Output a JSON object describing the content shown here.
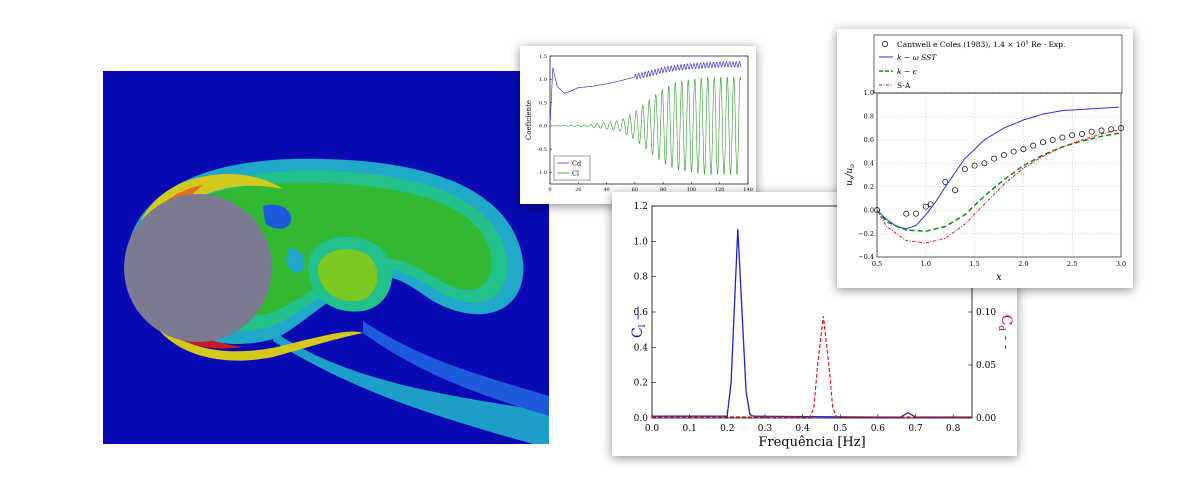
{
  "chart_data": [
    {
      "type": "line",
      "ylabel": "Coeficiente",
      "xlim": [
        0,
        140
      ],
      "ylim": [
        -1.25,
        1.5
      ],
      "xticks": [
        0,
        20,
        40,
        60,
        80,
        100,
        120,
        140
      ],
      "yticks": [
        -1.0,
        -0.5,
        0.0,
        0.5,
        1.0,
        1.5
      ],
      "legend_position": "lower-left",
      "series": [
        {
          "name": "Cd",
          "color": "#3a3ad6",
          "x": [
            0,
            2,
            5,
            10,
            15,
            20,
            30,
            40,
            50,
            60,
            70,
            80,
            90,
            100,
            110,
            120,
            135
          ],
          "values": [
            0.0,
            1.25,
            0.85,
            0.7,
            0.75,
            0.82,
            0.85,
            0.9,
            0.97,
            1.05,
            1.12,
            1.2,
            1.25,
            1.28,
            1.3,
            1.32,
            1.32
          ],
          "oscillation_amplitude": 0.06
        },
        {
          "name": "Cl",
          "color": "#2e9a2e",
          "x": [
            0,
            20,
            40,
            60,
            70,
            80,
            90,
            100,
            110,
            120,
            135
          ],
          "values": [
            0,
            0,
            0,
            0,
            0,
            0,
            0,
            0,
            0,
            0,
            0
          ],
          "envelope_x": [
            0,
            25,
            35,
            50,
            60,
            70,
            80,
            90,
            100,
            110,
            135
          ],
          "envelope": [
            0,
            0.02,
            0.05,
            0.12,
            0.3,
            0.55,
            0.8,
            0.95,
            1.0,
            1.05,
            1.05
          ]
        }
      ]
    },
    {
      "type": "line",
      "xlabel": "Frequência [Hz]",
      "ylabel_left": "C",
      "ylabel_left_sub": "l",
      "ylabel_right": "C",
      "ylabel_right_sub": "d",
      "xlim": [
        0,
        0.85
      ],
      "ylim_left": [
        0,
        1.2
      ],
      "ylim_right": [
        0,
        0.2
      ],
      "xticks": [
        "0.0",
        "0.1",
        "0.2",
        "0.3",
        "0.4",
        "0.5",
        "0.6",
        "0.7",
        "0.8"
      ],
      "yticks_left": [
        "0.0",
        "0.2",
        "0.4",
        "0.6",
        "0.8",
        "1.0",
        "1.2"
      ],
      "yticks_right": [
        "0.00",
        "0.05",
        "0.10"
      ],
      "series": [
        {
          "name": "Cl",
          "color": "#2222cc",
          "x": [
            0,
            0.2,
            0.2,
            0.21,
            0.228,
            0.25,
            0.26,
            0.27,
            0.6,
            0.66,
            0.68,
            0.7,
            0.85
          ],
          "values": [
            0.01,
            0.01,
            0.02,
            0.2,
            1.07,
            0.15,
            0.02,
            0.01,
            0.005,
            0.005,
            0.03,
            0.005,
            0.005
          ]
        },
        {
          "name": "Cd",
          "color": "#dd1111",
          "x": [
            0,
            0.42,
            0.43,
            0.44,
            0.455,
            0.47,
            0.48,
            0.49,
            0.85
          ],
          "values": [
            0.001,
            0.001,
            0.01,
            0.05,
            0.096,
            0.05,
            0.01,
            0.001,
            0.001
          ]
        }
      ]
    },
    {
      "type": "line",
      "xlabel": "x",
      "ylabel": "u",
      "ylabel_sub": "x",
      "ylabel_den": "u",
      "ylabel_den_sub": "o",
      "xlim": [
        0.5,
        3.0
      ],
      "ylim": [
        -0.4,
        1.0
      ],
      "xticks": [
        "0.5",
        "1.0",
        "1.5",
        "2.0",
        "2.5",
        "3.0"
      ],
      "yticks": [
        "−0.4",
        "−0.2",
        "0.0",
        "0.2",
        "0.4",
        "0.6",
        "0.8",
        "1.0"
      ],
      "grid": true,
      "legend_position": "top",
      "legend": [
        {
          "label": "Cantwell e Coles (1983), 1.4 × 10",
          "sup": "5",
          "tail": " Re - Exp."
        },
        {
          "label": "k − ω SST"
        },
        {
          "label": "k − ϵ"
        },
        {
          "label": "S-A"
        }
      ],
      "series": [
        {
          "name": "Cantwell e Coles (1983), 1.4 × 10^5 Re - Exp.",
          "marker": "circle",
          "color": "#000000",
          "x": [
            0.5,
            0.8,
            0.9,
            1.0,
            1.05,
            1.2,
            1.3,
            1.4,
            1.5,
            1.6,
            1.7,
            1.8,
            1.9,
            2.0,
            2.1,
            2.2,
            2.3,
            2.4,
            2.5,
            2.6,
            2.7,
            2.8,
            2.9,
            3.0
          ],
          "values": [
            0.0,
            -0.03,
            -0.03,
            0.03,
            0.05,
            0.24,
            0.17,
            0.35,
            0.38,
            0.4,
            0.44,
            0.47,
            0.5,
            0.52,
            0.55,
            0.58,
            0.6,
            0.62,
            0.64,
            0.65,
            0.67,
            0.68,
            0.69,
            0.7
          ]
        },
        {
          "name": "k − ω SST",
          "color": "#2233dd",
          "dash": "solid",
          "x": [
            0.5,
            0.6,
            0.7,
            0.8,
            0.9,
            1.0,
            1.1,
            1.2,
            1.3,
            1.4,
            1.5,
            1.6,
            1.8,
            2.0,
            2.2,
            2.4,
            2.6,
            2.8,
            3.0
          ],
          "values": [
            0.0,
            -0.08,
            -0.14,
            -0.16,
            -0.13,
            -0.04,
            0.07,
            0.2,
            0.32,
            0.44,
            0.52,
            0.6,
            0.7,
            0.77,
            0.82,
            0.85,
            0.86,
            0.87,
            0.88
          ]
        },
        {
          "name": "k − ϵ",
          "color": "#118811",
          "dash": "dashed",
          "x": [
            0.5,
            0.6,
            0.8,
            1.0,
            1.2,
            1.4,
            1.6,
            1.8,
            2.0,
            2.2,
            2.4,
            2.6,
            2.8,
            3.0
          ],
          "values": [
            0.0,
            -0.1,
            -0.17,
            -0.18,
            -0.14,
            -0.04,
            0.12,
            0.26,
            0.38,
            0.47,
            0.54,
            0.59,
            0.63,
            0.66
          ]
        },
        {
          "name": "S-A",
          "color": "#dd1111",
          "dash": "dashdot",
          "x": [
            0.5,
            0.6,
            0.8,
            1.0,
            1.2,
            1.4,
            1.6,
            1.8,
            2.0,
            2.2,
            2.4,
            2.6,
            2.8,
            3.0
          ],
          "values": [
            0.0,
            -0.14,
            -0.26,
            -0.28,
            -0.24,
            -0.12,
            0.05,
            0.22,
            0.36,
            0.46,
            0.54,
            0.6,
            0.65,
            0.69
          ]
        }
      ]
    }
  ],
  "colors": {
    "flow_background": "#0a0ab4",
    "cylinder": "#7a7a90",
    "contours": [
      "#1e5adc",
      "#1fa8c8",
      "#22c08a",
      "#32b832",
      "#7ac820",
      "#d4c81c",
      "#e07020",
      "#c81a1a"
    ]
  }
}
